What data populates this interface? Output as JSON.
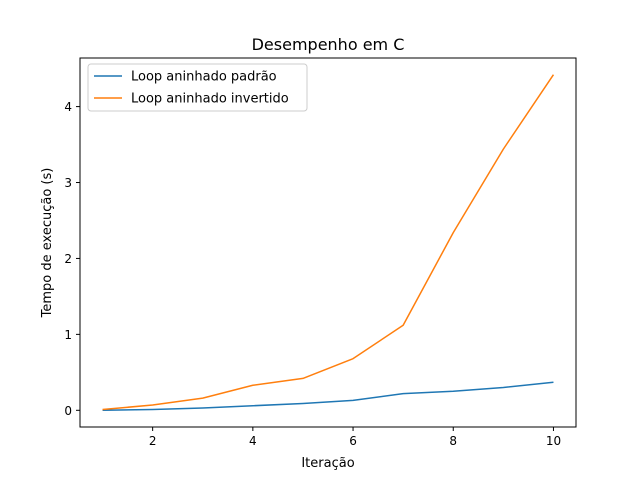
{
  "chart_data": {
    "type": "line",
    "title": "Desempenho em C",
    "xlabel": "Iteração",
    "ylabel": "Tempo de execução (s)",
    "xlim": [
      0.55,
      10.45
    ],
    "ylim": [
      -0.22,
      4.64
    ],
    "x_ticks": [
      2,
      4,
      6,
      8,
      10
    ],
    "y_ticks": [
      0,
      1,
      2,
      3,
      4
    ],
    "grid": false,
    "legend_position": "top-left",
    "series": [
      {
        "name": "Loop aninhado padrão",
        "color": "#1f77b4",
        "x": [
          1,
          2,
          3,
          4,
          5,
          6,
          7,
          8,
          9,
          10
        ],
        "y": [
          0.0,
          0.01,
          0.03,
          0.06,
          0.09,
          0.13,
          0.22,
          0.25,
          0.3,
          0.37
        ]
      },
      {
        "name": "Loop aninhado invertido",
        "color": "#ff7f0e",
        "x": [
          1,
          2,
          3,
          4,
          5,
          6,
          7,
          8,
          9,
          10
        ],
        "y": [
          0.01,
          0.07,
          0.16,
          0.33,
          0.42,
          0.68,
          1.12,
          2.34,
          3.44,
          4.42
        ]
      }
    ]
  }
}
